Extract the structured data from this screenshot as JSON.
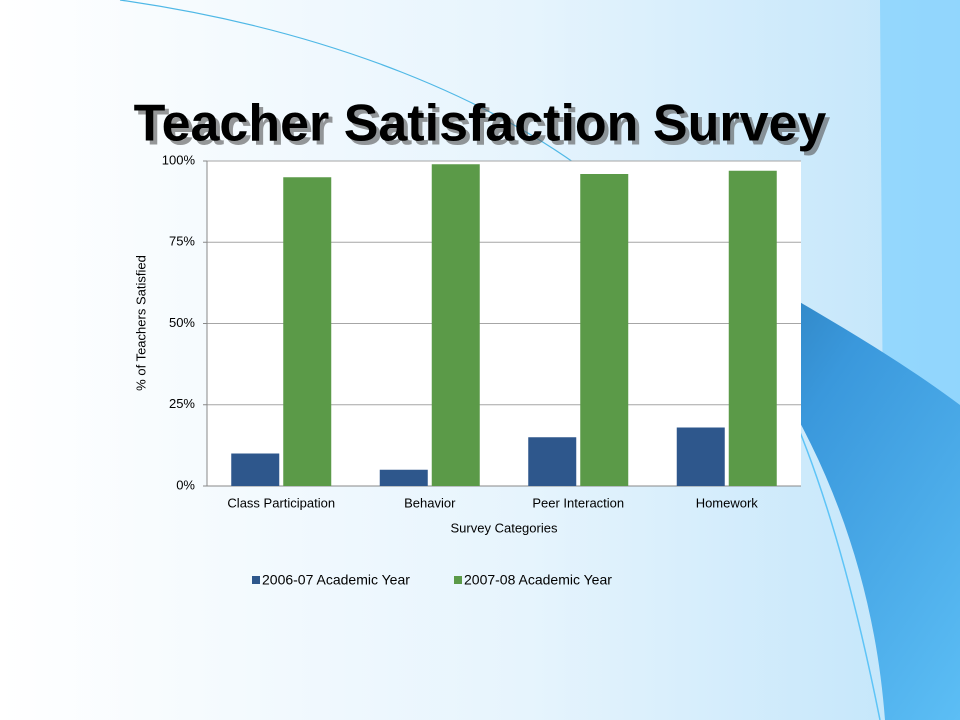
{
  "chart_data": {
    "type": "bar",
    "title": "Teacher Satisfaction Survey",
    "x_label": "Survey Categories",
    "y_label": "% of Teachers Satisfied",
    "categories": [
      "Class Participation",
      "Behavior",
      "Peer Interaction",
      "Homework"
    ],
    "series": [
      {
        "name": "2006-07 Academic Year",
        "color": "#2e578c",
        "values": [
          10,
          5,
          15,
          18
        ]
      },
      {
        "name": "2007-08 Academic Year",
        "color": "#5b9a48",
        "values": [
          95,
          99,
          96,
          97
        ]
      }
    ],
    "ylim": [
      0,
      100
    ],
    "yticks": [
      {
        "value": 0,
        "label": "0%"
      },
      {
        "value": 25,
        "label": "25%"
      },
      {
        "value": 50,
        "label": "50%"
      },
      {
        "value": 75,
        "label": "75%"
      },
      {
        "value": 100,
        "label": "100%"
      }
    ],
    "grid": true,
    "legend": "bottom"
  }
}
